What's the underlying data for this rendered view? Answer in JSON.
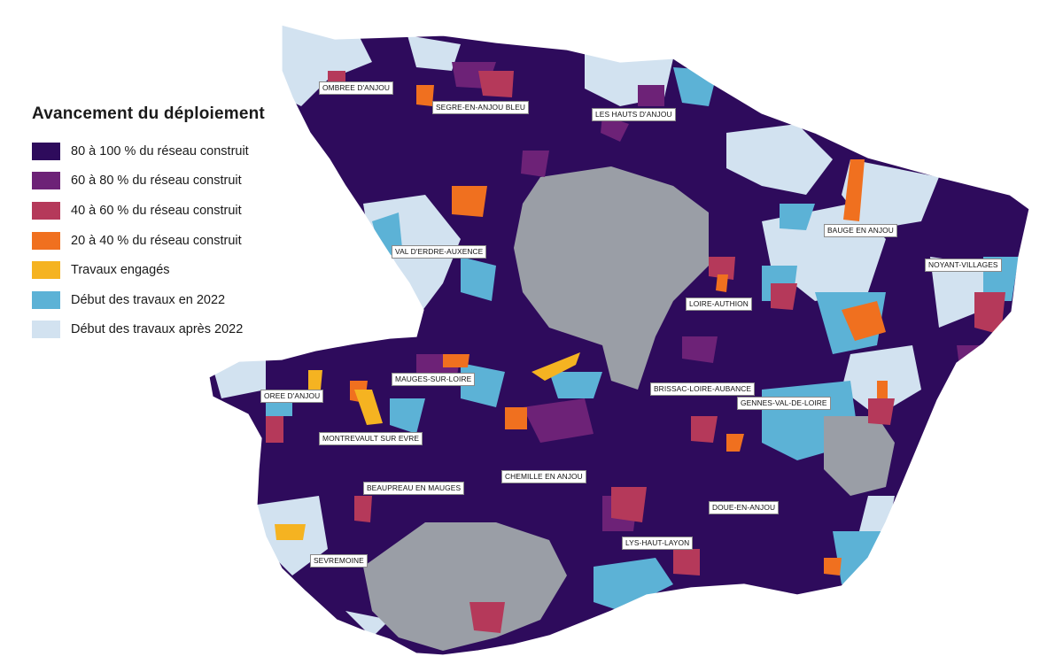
{
  "colors": {
    "c80_100": "#2e0b5c",
    "c60_80": "#6d2277",
    "c40_60": "#b5395a",
    "c20_40": "#f0701f",
    "engages": "#f5b321",
    "debut2022": "#5cb2d6",
    "apres2022": "#d2e2f0",
    "non_concerne": "#9a9ea6"
  },
  "legend": {
    "title": "Avancement du déploiement",
    "items": [
      {
        "key": "c80_100",
        "label": "80 à 100 % du réseau construit"
      },
      {
        "key": "c60_80",
        "label": "60 à 80 % du réseau construit"
      },
      {
        "key": "c40_60",
        "label": "40 à 60 % du réseau construit"
      },
      {
        "key": "c20_40",
        "label": "20 à 40 % du réseau construit"
      },
      {
        "key": "engages",
        "label": "Travaux engagés"
      },
      {
        "key": "debut2022",
        "label": "Début des travaux en 2022"
      },
      {
        "key": "apres2022",
        "label": "Début des travaux après 2022"
      }
    ]
  },
  "places": [
    "OMBREE D'ANJOU",
    "SEGRE-EN-ANJOU BLEU",
    "LES HAUTS D'ANJOU",
    "VAL D'ERDRE-AUXENCE",
    "BAUGE EN ANJOU",
    "NOYANT-VILLAGES",
    "LOIRE-AUTHION",
    "MAUGES-SUR-LOIRE",
    "BRISSAC-LOIRE-AUBANCE",
    "GENNES-VAL-DE-LOIRE",
    "OREE D'ANJOU",
    "MONTREVAULT SUR EVRE",
    "CHEMILLE EN ANJOU",
    "BEAUPREAU EN MAUGES",
    "DOUE-EN-ANJOU",
    "LYS-HAUT-LAYON",
    "SEVREMOINE"
  ]
}
